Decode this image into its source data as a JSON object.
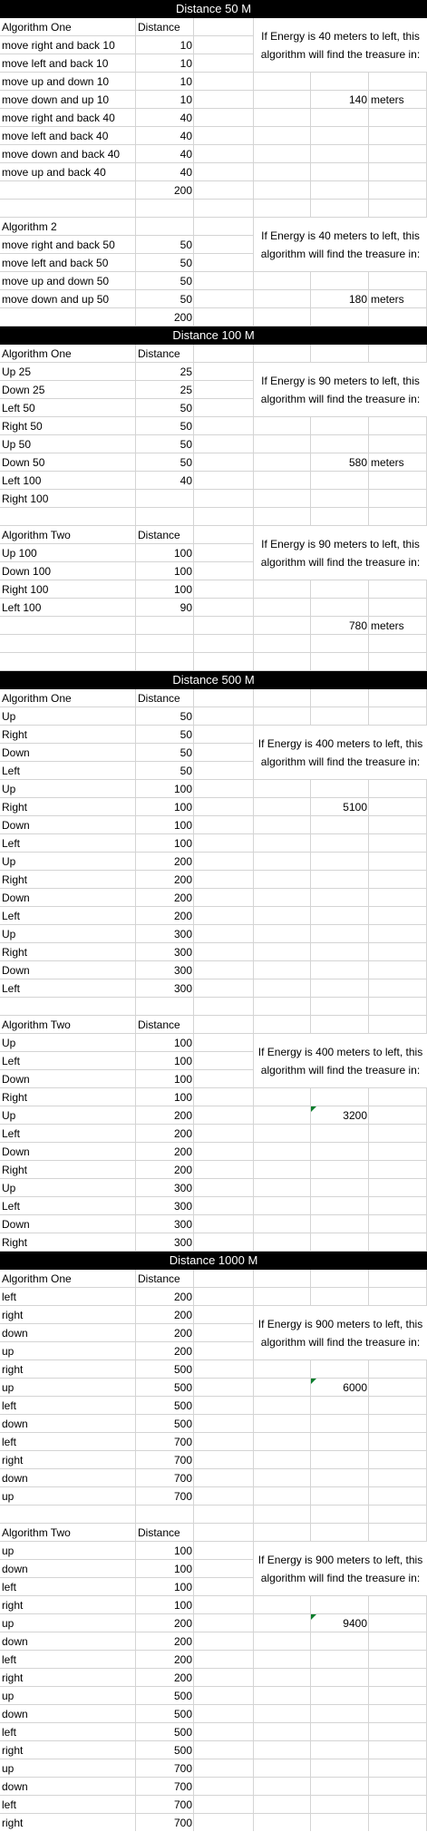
{
  "col_headers": {
    "name": "",
    "distance": "Distance"
  },
  "units": "meters",
  "sections": [
    {
      "title": "Distance 50 M",
      "algorithms": [
        {
          "name": "Algorithm One",
          "distance_header": "Distance",
          "rows": [
            [
              "move right and back 10",
              "10"
            ],
            [
              "move left and back 10",
              "10"
            ],
            [
              "move up and down 10",
              "10"
            ],
            [
              "move down and up 10",
              "10"
            ],
            [
              "move right and back 40",
              "40"
            ],
            [
              "move left and back 40",
              "40"
            ],
            [
              "move down and back 40",
              "40"
            ],
            [
              "move up and back 40",
              "40"
            ]
          ],
          "total": "200",
          "note": "If Energy is 40 meters to left, this algorithm will find the treasure in:",
          "result": "140",
          "result_unit": "meters",
          "flag": false
        },
        {
          "name": "Algorithm 2",
          "distance_header": "",
          "rows": [
            [
              "move right and back 50",
              "50"
            ],
            [
              "move left and back 50",
              "50"
            ],
            [
              "move up and down 50",
              "50"
            ],
            [
              "move down and up 50",
              "50"
            ]
          ],
          "total": "200",
          "note": "If Energy is 40 meters to left, this algorithm will find the treasure in:",
          "result": "180",
          "result_unit": "meters",
          "flag": false
        }
      ]
    },
    {
      "title": "Distance 100 M",
      "algorithms": [
        {
          "name": "Algorithm One",
          "distance_header": "Distance",
          "rows": [
            [
              "Up 25",
              "25"
            ],
            [
              "Down 25",
              "25"
            ],
            [
              "Left 50",
              "50"
            ],
            [
              "Right 50",
              "50"
            ],
            [
              "Up 50",
              "50"
            ],
            [
              "Down 50",
              "50"
            ],
            [
              "Left 100",
              "40"
            ],
            [
              "Right 100",
              ""
            ]
          ],
          "total": "",
          "note": "If Energy is 90 meters to left, this algorithm will find the treasure in:",
          "result": "580",
          "result_unit": "meters",
          "flag": false
        },
        {
          "name": "Algorithm Two",
          "distance_header": "Distance",
          "rows": [
            [
              "Up 100",
              "100"
            ],
            [
              "Down 100",
              "100"
            ],
            [
              "Right 100",
              "100"
            ],
            [
              "Left 100",
              "90"
            ]
          ],
          "total": "",
          "note": "If Energy is 90 meters to left, this algorithm will find the treasure in:",
          "result": "780",
          "result_unit": "meters",
          "flag": false
        }
      ]
    },
    {
      "title": "Distance 500 M",
      "algorithms": [
        {
          "name": "Algorithm One",
          "distance_header": "Distance",
          "rows": [
            [
              "Up",
              "50"
            ],
            [
              "Right",
              "50"
            ],
            [
              "Down",
              "50"
            ],
            [
              "Left",
              "50"
            ],
            [
              "Up",
              "100"
            ],
            [
              "Right",
              "100"
            ],
            [
              "Down",
              "100"
            ],
            [
              "Left",
              "100"
            ],
            [
              "Up",
              "200"
            ],
            [
              "Right",
              "200"
            ],
            [
              "Down",
              "200"
            ],
            [
              "Left",
              "200"
            ],
            [
              "Up",
              "300"
            ],
            [
              "Right",
              "300"
            ],
            [
              "Down",
              "300"
            ],
            [
              "Left",
              "300"
            ]
          ],
          "total": "",
          "note": "If Energy is 400 meters to left, this algorithm will find the treasure in:",
          "result": "5100",
          "result_unit": "",
          "flag": false
        },
        {
          "name": "Algorithm Two",
          "distance_header": "Distance",
          "rows": [
            [
              "Up",
              "100"
            ],
            [
              "Left",
              "100"
            ],
            [
              "Down",
              "100"
            ],
            [
              "Right",
              "100"
            ],
            [
              "Up",
              "200"
            ],
            [
              "Left",
              "200"
            ],
            [
              "Down",
              "200"
            ],
            [
              "Right",
              "200"
            ],
            [
              "Up",
              "300"
            ],
            [
              "Left",
              "300"
            ],
            [
              "Down",
              "300"
            ],
            [
              "Right",
              "300"
            ]
          ],
          "total": "",
          "note": "If Energy is 400 meters to left, this algorithm will find the treasure in:",
          "result": "3200",
          "result_unit": "",
          "flag": true
        }
      ]
    },
    {
      "title": "Distance 1000 M",
      "algorithms": [
        {
          "name": "Algorithm One",
          "distance_header": "Distance",
          "rows": [
            [
              "left",
              "200"
            ],
            [
              "right",
              "200"
            ],
            [
              "down",
              "200"
            ],
            [
              "up",
              "200"
            ],
            [
              "right",
              "500"
            ],
            [
              "up",
              "500"
            ],
            [
              "left",
              "500"
            ],
            [
              "down",
              "500"
            ],
            [
              "left",
              "700"
            ],
            [
              "right",
              "700"
            ],
            [
              "down",
              "700"
            ],
            [
              "up",
              "700"
            ]
          ],
          "total": "",
          "note": "If Energy is 900 meters to left, this algorithm will find the treasure in:",
          "result": "6000",
          "result_unit": "",
          "flag": true
        },
        {
          "name": "Algorithm Two",
          "distance_header": "Distance",
          "rows": [
            [
              "up",
              "100"
            ],
            [
              "down",
              "100"
            ],
            [
              "left",
              "100"
            ],
            [
              "right",
              "100"
            ],
            [
              "up",
              "200"
            ],
            [
              "down",
              "200"
            ],
            [
              "left",
              "200"
            ],
            [
              "right",
              "200"
            ],
            [
              "up",
              "500"
            ],
            [
              "down",
              "500"
            ],
            [
              "left",
              "500"
            ],
            [
              "right",
              "500"
            ],
            [
              "up",
              "700"
            ],
            [
              "down",
              "700"
            ],
            [
              "left",
              "700"
            ],
            [
              "right",
              "700"
            ]
          ],
          "total": "",
          "note": "If Energy is 900 meters to left, this algorithm will find the treasure in:",
          "result": "9400",
          "result_unit": "",
          "flag": true
        }
      ]
    }
  ]
}
